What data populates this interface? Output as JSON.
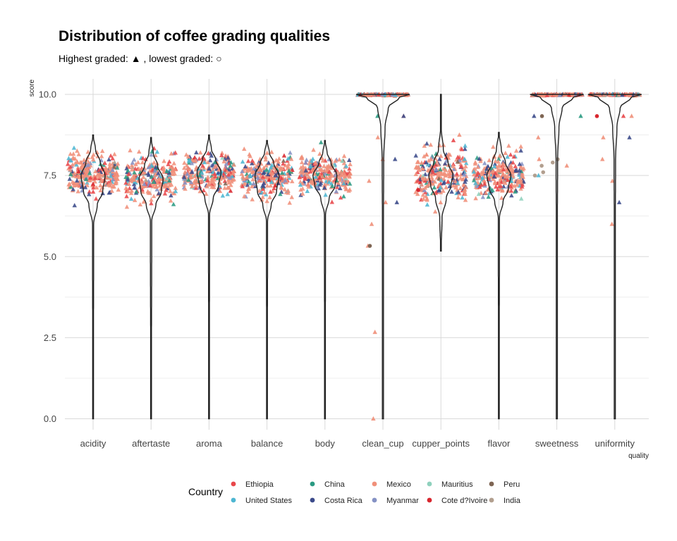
{
  "chart_data": {
    "type": "violin-jitter",
    "title": "Distribution of coffee grading qualities",
    "subtitle": "Highest graded: ▲ , lowest graded: ○",
    "xlabel": "quality",
    "ylabel": "score",
    "ylim": [
      0,
      10
    ],
    "yticks": [
      "0.0",
      "2.5",
      "5.0",
      "7.5",
      "10.0"
    ],
    "ytick_values": [
      0,
      2.5,
      5,
      7.5,
      10
    ],
    "grid": true,
    "legend_position": "bottom",
    "categories": [
      "acidity",
      "aftertaste",
      "aroma",
      "balance",
      "body",
      "clean_cup",
      "cupper_points",
      "flavor",
      "sweetness",
      "uniformity"
    ],
    "distributions": [
      {
        "name": "acidity",
        "center": 7.55,
        "spread": 0.3,
        "min": 0,
        "max": 8.75,
        "density": [
          [
            0,
            0.02
          ],
          [
            6.0,
            0.05
          ],
          [
            6.6,
            0.35
          ],
          [
            7.0,
            0.8
          ],
          [
            7.5,
            1.0
          ],
          [
            7.9,
            0.6
          ],
          [
            8.3,
            0.2
          ],
          [
            8.75,
            0.01
          ]
        ]
      },
      {
        "name": "aftertaste",
        "center": 7.4,
        "spread": 0.32,
        "min": 0,
        "max": 8.67,
        "density": [
          [
            0,
            0.02
          ],
          [
            6.1,
            0.06
          ],
          [
            6.6,
            0.4
          ],
          [
            7.0,
            0.85
          ],
          [
            7.4,
            1.0
          ],
          [
            7.8,
            0.55
          ],
          [
            8.2,
            0.18
          ],
          [
            8.67,
            0.01
          ]
        ]
      },
      {
        "name": "aroma",
        "center": 7.57,
        "spread": 0.3,
        "min": 0,
        "max": 8.75,
        "density": [
          [
            0,
            0.02
          ],
          [
            6.3,
            0.05
          ],
          [
            6.8,
            0.35
          ],
          [
            7.2,
            0.8
          ],
          [
            7.6,
            1.0
          ],
          [
            8.0,
            0.55
          ],
          [
            8.3,
            0.2
          ],
          [
            8.75,
            0.01
          ]
        ]
      },
      {
        "name": "balance",
        "center": 7.52,
        "spread": 0.32,
        "min": 0,
        "max": 8.58,
        "density": [
          [
            0,
            0.02
          ],
          [
            6.1,
            0.05
          ],
          [
            6.6,
            0.35
          ],
          [
            7.0,
            0.8
          ],
          [
            7.5,
            1.0
          ],
          [
            7.9,
            0.55
          ],
          [
            8.2,
            0.2
          ],
          [
            8.58,
            0.01
          ]
        ]
      },
      {
        "name": "body",
        "center": 7.52,
        "spread": 0.28,
        "min": 0,
        "max": 8.58,
        "density": [
          [
            0,
            0.02
          ],
          [
            6.3,
            0.05
          ],
          [
            6.8,
            0.35
          ],
          [
            7.2,
            0.85
          ],
          [
            7.5,
            1.0
          ],
          [
            7.9,
            0.5
          ],
          [
            8.2,
            0.18
          ],
          [
            8.58,
            0.01
          ]
        ]
      },
      {
        "name": "clean_cup",
        "center": 9.85,
        "spread": 0.4,
        "min": 0,
        "max": 10,
        "density": [
          [
            0,
            0.02
          ],
          [
            6.0,
            0.02
          ],
          [
            8.0,
            0.03
          ],
          [
            9.0,
            0.08
          ],
          [
            9.6,
            0.2
          ],
          [
            9.9,
            0.6
          ],
          [
            10.0,
            1.0
          ]
        ]
      },
      {
        "name": "cupper_points",
        "center": 7.5,
        "spread": 0.38,
        "min": 5.17,
        "max": 10,
        "density": [
          [
            5.17,
            0.02
          ],
          [
            6.2,
            0.1
          ],
          [
            6.8,
            0.45
          ],
          [
            7.2,
            0.85
          ],
          [
            7.5,
            1.0
          ],
          [
            7.9,
            0.6
          ],
          [
            8.3,
            0.2
          ],
          [
            9.0,
            0.02
          ],
          [
            10.0,
            0.01
          ]
        ]
      },
      {
        "name": "flavor",
        "center": 7.52,
        "spread": 0.32,
        "min": 0,
        "max": 8.83,
        "density": [
          [
            0,
            0.02
          ],
          [
            6.2,
            0.05
          ],
          [
            6.7,
            0.35
          ],
          [
            7.1,
            0.8
          ],
          [
            7.5,
            1.0
          ],
          [
            7.9,
            0.55
          ],
          [
            8.3,
            0.2
          ],
          [
            8.83,
            0.01
          ]
        ]
      },
      {
        "name": "sweetness",
        "center": 9.85,
        "spread": 0.4,
        "min": 0,
        "max": 10,
        "density": [
          [
            0,
            0.02
          ],
          [
            6.0,
            0.02
          ],
          [
            8.0,
            0.03
          ],
          [
            9.0,
            0.08
          ],
          [
            9.6,
            0.2
          ],
          [
            9.9,
            0.6
          ],
          [
            10.0,
            1.0
          ]
        ]
      },
      {
        "name": "uniformity",
        "center": 9.85,
        "spread": 0.4,
        "min": 0,
        "max": 10,
        "density": [
          [
            0,
            0.02
          ],
          [
            6.0,
            0.02
          ],
          [
            8.0,
            0.03
          ],
          [
            9.0,
            0.08
          ],
          [
            9.6,
            0.2
          ],
          [
            9.9,
            0.6
          ],
          [
            10.0,
            1.0
          ]
        ]
      }
    ],
    "legend": {
      "title": "Country",
      "entries": [
        {
          "name": "Ethiopia",
          "color": "#e8474a"
        },
        {
          "name": "United States",
          "color": "#4db6d2"
        },
        {
          "name": "China",
          "color": "#2a9a82"
        },
        {
          "name": "Costa Rica",
          "color": "#3b4a8a"
        },
        {
          "name": "Mexico",
          "color": "#f0907a"
        },
        {
          "name": "Myanmar",
          "color": "#8592c4"
        },
        {
          "name": "Mauritius",
          "color": "#8fd1bd"
        },
        {
          "name": "Cote d?Ivoire",
          "color": "#d8262e"
        },
        {
          "name": "Peru",
          "color": "#7e6553"
        },
        {
          "name": "India",
          "color": "#b29f8f"
        }
      ]
    },
    "point_weights": {
      "Ethiopia": 0.12,
      "United States": 0.08,
      "China": 0.06,
      "Costa Rica": 0.1,
      "Mexico": 0.55,
      "Myanmar": 0.06,
      "Mauritius": 0.01,
      "Cote d?Ivoire": 0.01,
      "Peru": 0.005,
      "India": 0.005
    },
    "outliers": {
      "clean_cup": [
        {
          "y": 9.33,
          "country": "Mexico"
        },
        {
          "y": 9.33,
          "country": "China"
        },
        {
          "y": 9.33,
          "country": "Costa Rica"
        },
        {
          "y": 8.67,
          "country": "Mexico"
        },
        {
          "y": 8.0,
          "country": "Mexico"
        },
        {
          "y": 8.0,
          "country": "Costa Rica"
        },
        {
          "y": 7.33,
          "country": "Mexico"
        },
        {
          "y": 6.67,
          "country": "Mexico"
        },
        {
          "y": 6.67,
          "country": "Costa Rica"
        },
        {
          "y": 6.0,
          "country": "Mexico"
        },
        {
          "y": 5.33,
          "country": "Mexico"
        },
        {
          "y": 5.33,
          "country": "Peru"
        },
        {
          "y": 2.67,
          "country": "Mexico"
        },
        {
          "y": 0.0,
          "country": "Mexico"
        }
      ],
      "sweetness": [
        {
          "y": 9.33,
          "country": "China"
        },
        {
          "y": 9.33,
          "country": "Peru"
        },
        {
          "y": 9.33,
          "country": "Costa Rica"
        },
        {
          "y": 8.67,
          "country": "Mexico"
        },
        {
          "y": 8.0,
          "country": "India"
        },
        {
          "y": 7.9,
          "country": "India"
        },
        {
          "y": 7.8,
          "country": "India"
        },
        {
          "y": 7.6,
          "country": "India"
        },
        {
          "y": 7.5,
          "country": "India"
        },
        {
          "y": 7.5,
          "country": "United States"
        },
        {
          "y": 7.8,
          "country": "Mexico"
        },
        {
          "y": 8.0,
          "country": "Mexico"
        }
      ],
      "uniformity": [
        {
          "y": 9.33,
          "country": "Cote d?Ivoire"
        },
        {
          "y": 9.33,
          "country": "Mexico"
        },
        {
          "y": 9.33,
          "country": "Ethiopia"
        },
        {
          "y": 8.67,
          "country": "Mexico"
        },
        {
          "y": 8.0,
          "country": "Mexico"
        },
        {
          "y": 7.33,
          "country": "Mexico"
        },
        {
          "y": 6.67,
          "country": "Costa Rica"
        },
        {
          "y": 6.0,
          "country": "Mexico"
        },
        {
          "y": 8.67,
          "country": "Costa Rica"
        }
      ],
      "cupper_points": [
        {
          "y": 8.75,
          "country": "Mexico"
        },
        {
          "y": 8.58,
          "country": "Ethiopia"
        },
        {
          "y": 7.05,
          "country": "Cote d?Ivoire"
        }
      ]
    }
  }
}
